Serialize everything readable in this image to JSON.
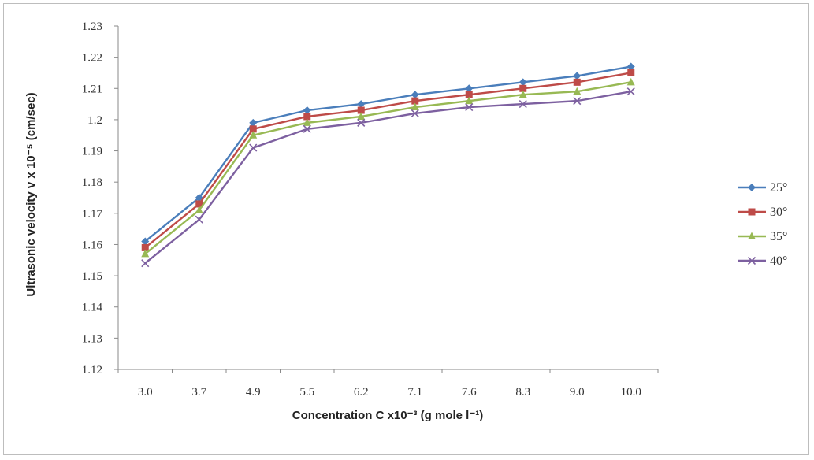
{
  "chart_data": {
    "type": "line",
    "title": "",
    "xlabel": "Concentration C x10⁻³ (g mole l⁻¹)",
    "ylabel": "Ultrasonic velocity v x 10⁻⁵ (cm/sec)",
    "categories": [
      "3.0",
      "3.7",
      "4.9",
      "5.5",
      "6.2",
      "7.1",
      "7.6",
      "8.3",
      "9.0",
      "10.0"
    ],
    "ylim": [
      1.12,
      1.23
    ],
    "yticks": [
      "1.12",
      "1.13",
      "1.14",
      "1.15",
      "1.16",
      "1.17",
      "1.18",
      "1.19",
      "1.2",
      "1.21",
      "1.22",
      "1.23"
    ],
    "grid": false,
    "legend_position": "right",
    "series": [
      {
        "name": "25°",
        "color": "#4a7ebb",
        "marker": "diamond",
        "values": [
          1.161,
          1.175,
          1.199,
          1.203,
          1.205,
          1.208,
          1.21,
          1.212,
          1.214,
          1.217
        ]
      },
      {
        "name": "30°",
        "color": "#be4b48",
        "marker": "square",
        "values": [
          1.159,
          1.173,
          1.197,
          1.201,
          1.203,
          1.206,
          1.208,
          1.21,
          1.212,
          1.215
        ]
      },
      {
        "name": "35°",
        "color": "#98b954",
        "marker": "triangle",
        "values": [
          1.157,
          1.171,
          1.195,
          1.199,
          1.201,
          1.204,
          1.206,
          1.208,
          1.209,
          1.212
        ]
      },
      {
        "name": "40°",
        "color": "#7d60a0",
        "marker": "x",
        "values": [
          1.154,
          1.168,
          1.191,
          1.197,
          1.199,
          1.202,
          1.204,
          1.205,
          1.206,
          1.209
        ]
      }
    ]
  }
}
